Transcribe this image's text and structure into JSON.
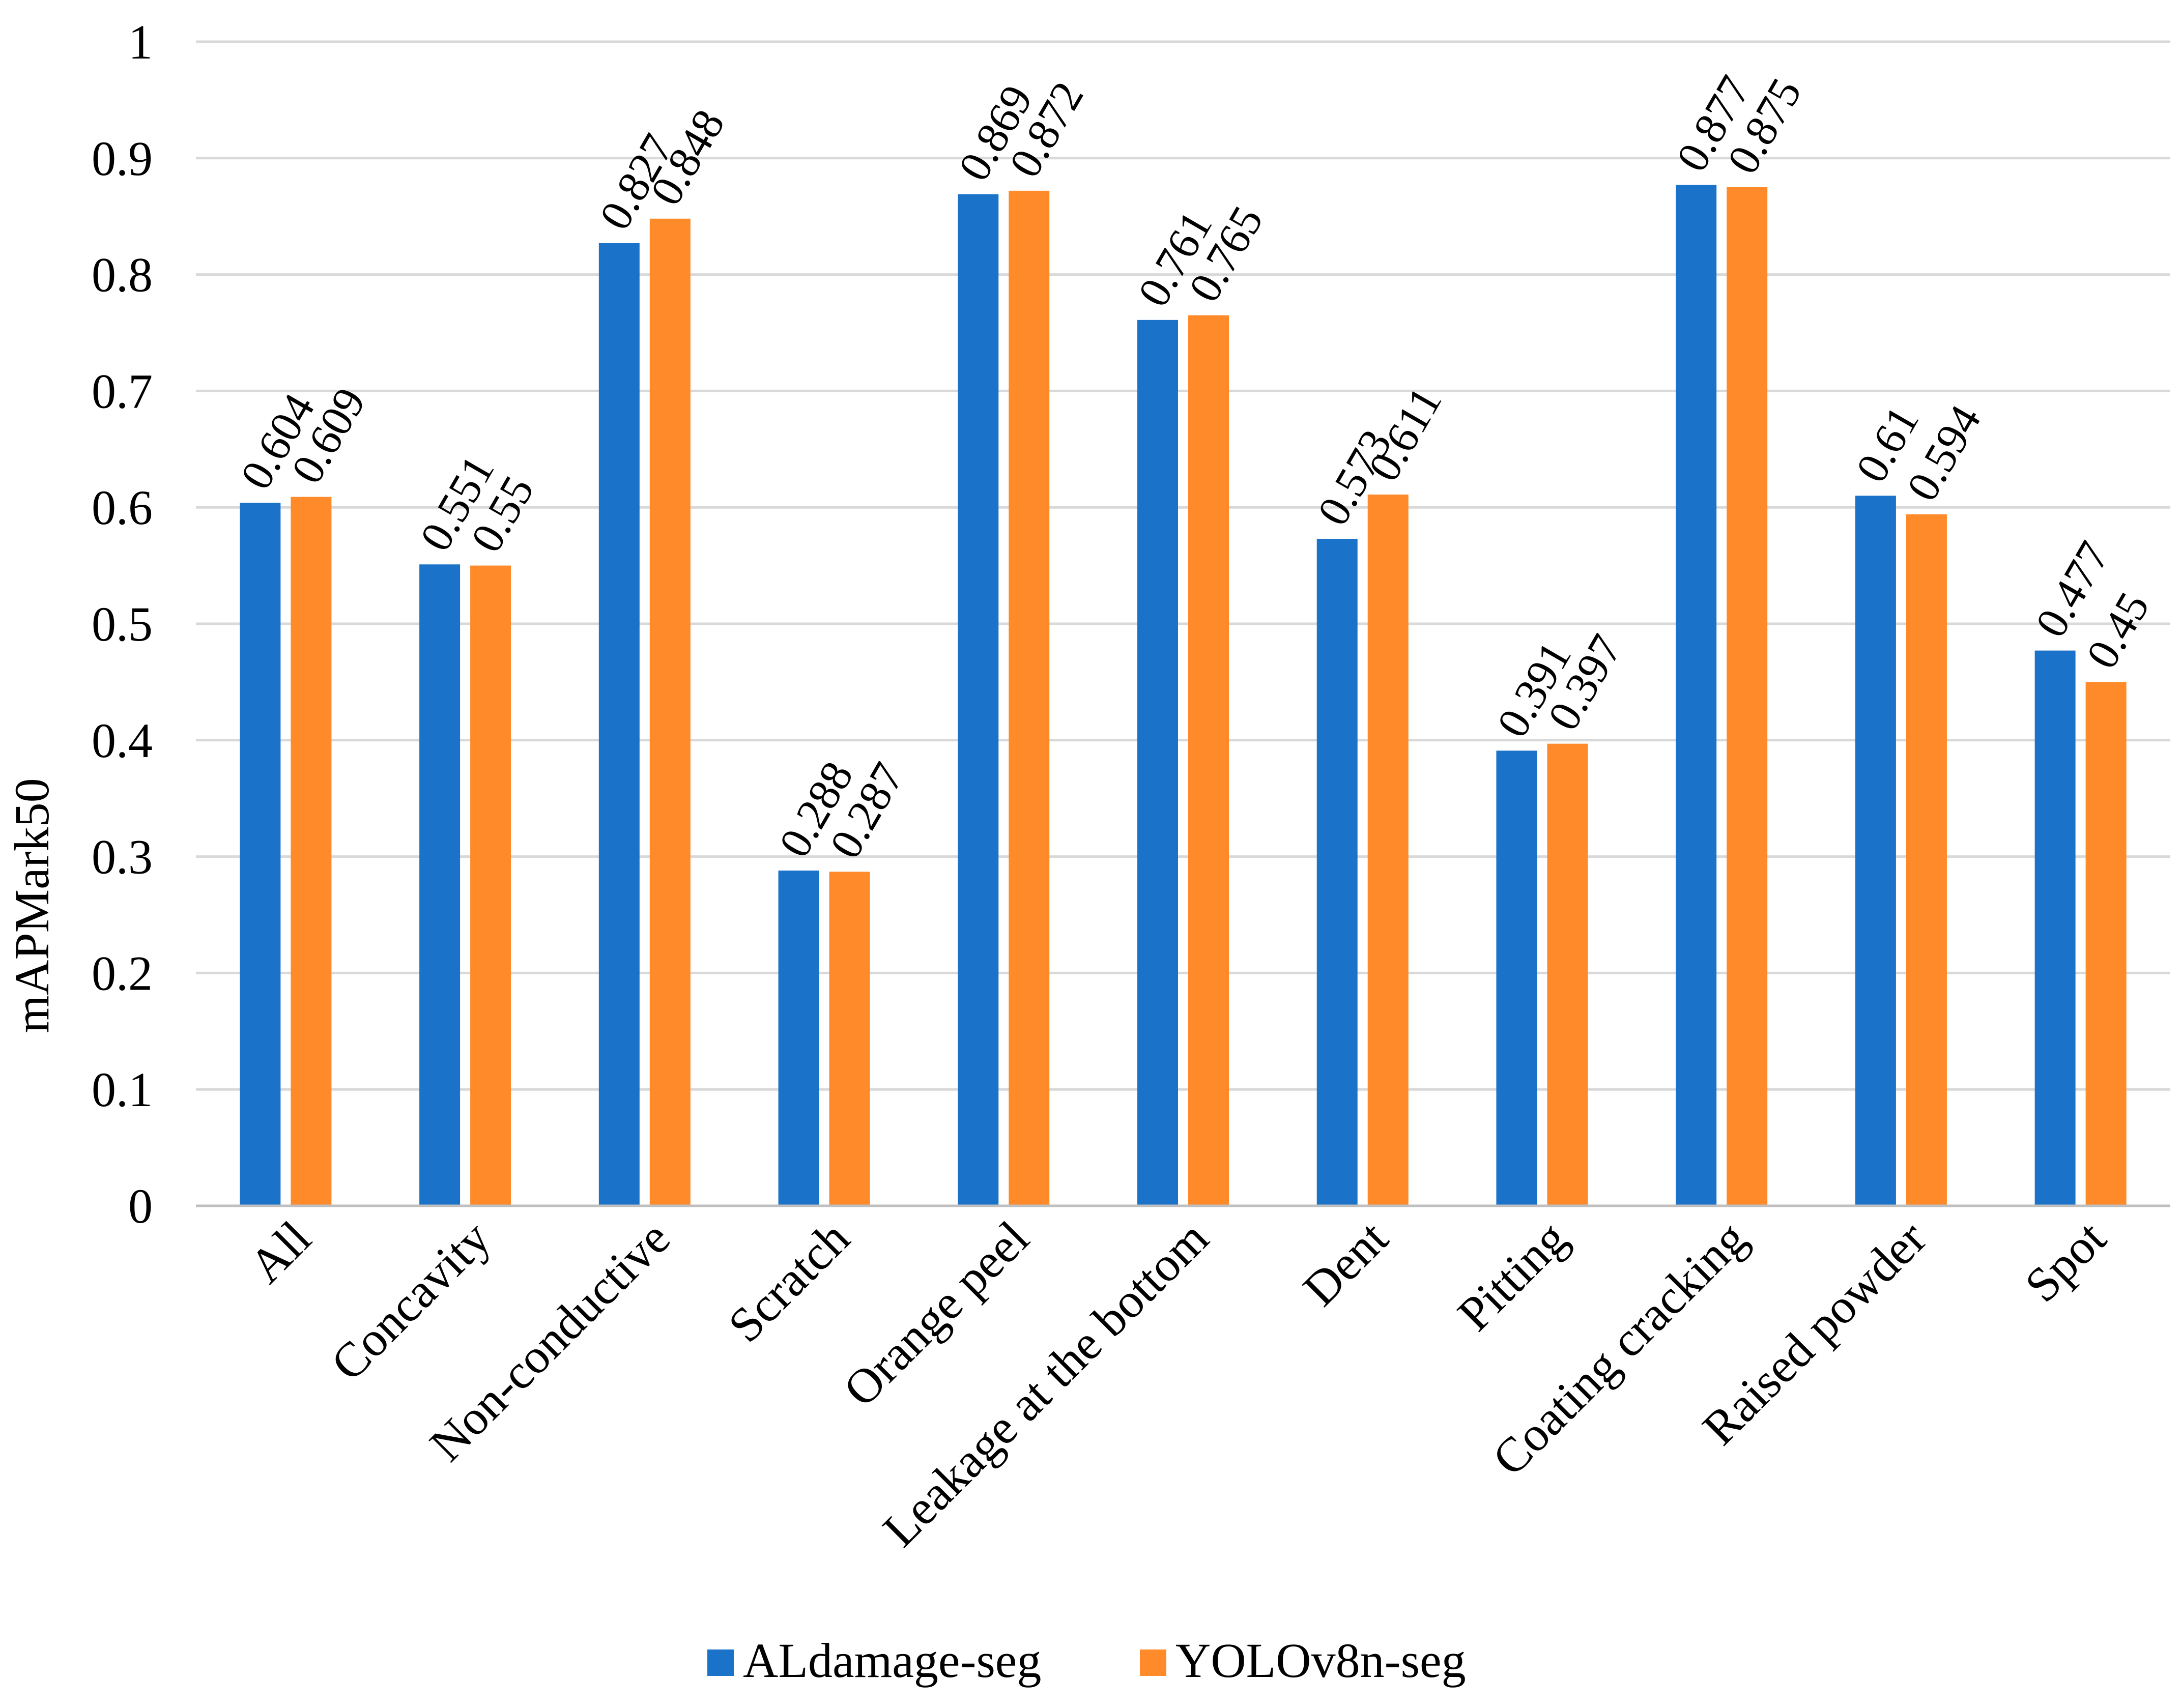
{
  "chart_data": {
    "type": "bar",
    "title": "",
    "xlabel": "",
    "ylabel": "mAPMark50",
    "ylim": [
      0,
      1
    ],
    "yticks": [
      "0",
      "0.1",
      "0.2",
      "0.3",
      "0.4",
      "0.5",
      "0.6",
      "0.7",
      "0.8",
      "0.9",
      "1"
    ],
    "grid": true,
    "legend_position": "bottom",
    "categories": [
      "All",
      "Concavity",
      "Non-conductive",
      "Scratch",
      "Orange peel",
      "Leakage at the bottom",
      "Dent",
      "Pitting",
      "Coating cracking",
      "Raised powder",
      "Spot"
    ],
    "series": [
      {
        "name": "ALdamage-seg",
        "color": "#1a73c8",
        "values": [
          0.604,
          0.551,
          0.827,
          0.288,
          0.869,
          0.761,
          0.573,
          0.391,
          0.877,
          0.61,
          0.477
        ],
        "labels": [
          "0.604",
          "0.551",
          "0.827",
          "0.288",
          "0.869",
          "0.761",
          "0.573",
          "0.391",
          "0.877",
          "0.61",
          "0.477"
        ]
      },
      {
        "name": "YOLOv8n-seg",
        "color": "#ff8a2a",
        "values": [
          0.609,
          0.55,
          0.848,
          0.287,
          0.872,
          0.765,
          0.611,
          0.397,
          0.875,
          0.594,
          0.45
        ],
        "labels": [
          "0.609",
          "0.55",
          "0.848",
          "0.287",
          "0.872",
          "0.765",
          "0.611",
          "0.397",
          "0.875",
          "0.594",
          "0.45"
        ]
      }
    ]
  }
}
